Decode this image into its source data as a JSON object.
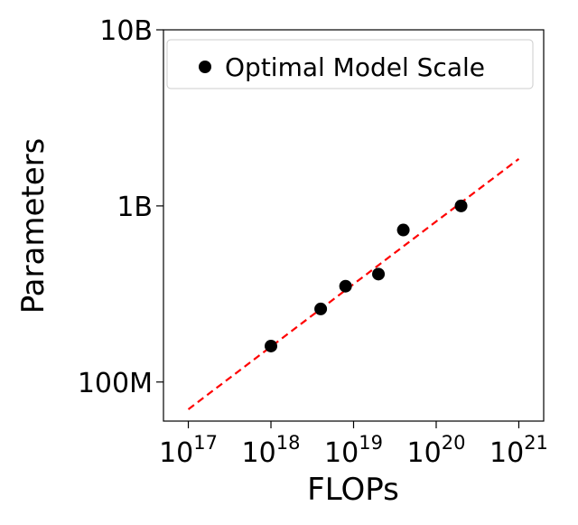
{
  "chart_data": {
    "type": "scatter",
    "xlabel": "FLOPs",
    "ylabel": "Parameters",
    "x_scale": "log",
    "y_scale": "log",
    "xlim": [
      5e+16,
      2e+21
    ],
    "ylim": [
      60000000.0,
      10000000000.0
    ],
    "x_ticks": [
      {
        "value": 1e+17,
        "base": "10",
        "exp": "17"
      },
      {
        "value": 1e+18,
        "base": "10",
        "exp": "18"
      },
      {
        "value": 1e+19,
        "base": "10",
        "exp": "19"
      },
      {
        "value": 1e+20,
        "base": "10",
        "exp": "20"
      },
      {
        "value": 1e+21,
        "base": "10",
        "exp": "21"
      }
    ],
    "y_ticks": [
      {
        "value": 100000000.0,
        "label": "100M"
      },
      {
        "value": 1000000000.0,
        "label": "1B"
      },
      {
        "value": 10000000000.0,
        "label": "10B"
      }
    ],
    "series": [
      {
        "name": "Optimal Model Scale",
        "color": "#000000",
        "marker": "circle",
        "points": [
          {
            "x": 1e+18,
            "y": 160000000.0
          },
          {
            "x": 4e+18,
            "y": 260000000.0
          },
          {
            "x": 8e+18,
            "y": 350000000.0
          },
          {
            "x": 2e+19,
            "y": 410000000.0
          },
          {
            "x": 4e+19,
            "y": 730000000.0
          },
          {
            "x": 2e+20,
            "y": 1000000000.0
          }
        ]
      }
    ],
    "fit_line": {
      "style": "dashed",
      "color": "#ff0000",
      "points": [
        {
          "x": 1e+17,
          "y": 70000000.0
        },
        {
          "x": 1e+21,
          "y": 1850000000.0
        }
      ]
    },
    "legend": {
      "position": "top-right"
    },
    "grid": false
  }
}
